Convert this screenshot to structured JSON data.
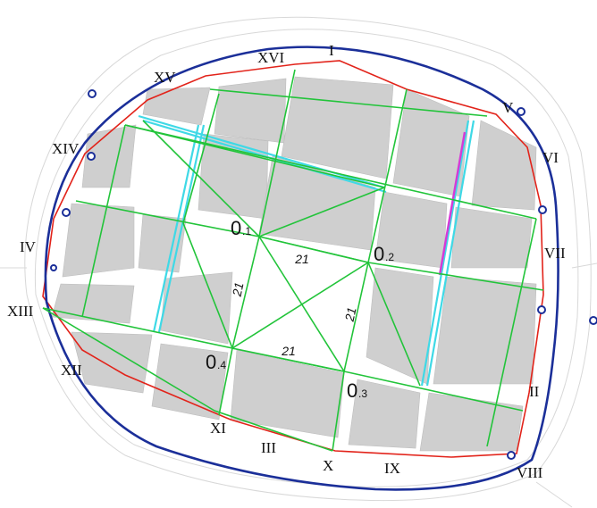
{
  "colors": {
    "outer_wall": "#1b2f99",
    "inner_boundary": "#e2231a",
    "construction_lines": "#22c43a",
    "highlight_streets": "#3fd9e6",
    "special_street": "#d63ad6",
    "blocks": "#cfcfcf",
    "background_streets": "#ffffff"
  },
  "gate_labels": {
    "I": "I",
    "II": "II",
    "III": "III",
    "IV": "IV",
    "V": "V",
    "VI": "VI",
    "VII": "VII",
    "VIII": "VIII",
    "IX": "IX",
    "X": "X",
    "XI": "XI",
    "XII": "XII",
    "XIII": "XIII",
    "XIV": "XIV",
    "XV": "XV",
    "XVI": "XVI"
  },
  "points": {
    "p1": {
      "main": "0",
      "sub": ".1"
    },
    "p2": {
      "main": "0",
      "sub": ".2"
    },
    "p3": {
      "main": "0",
      "sub": ".3"
    },
    "p4": {
      "main": "0",
      "sub": ".4"
    }
  },
  "distances": {
    "top": "21",
    "right": "21",
    "bottom": "21",
    "left": "21"
  },
  "icons": {
    "tower_marker": "tower-icon"
  }
}
